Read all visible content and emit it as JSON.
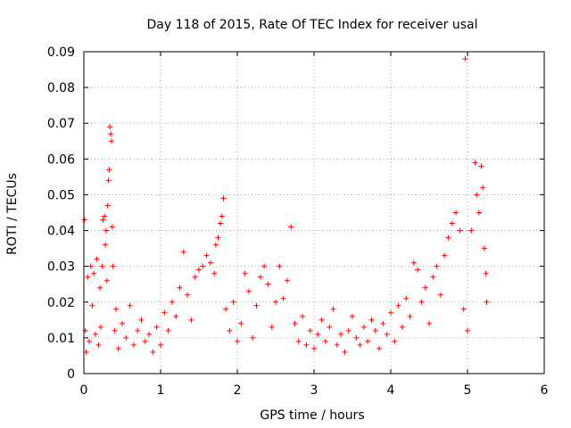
{
  "chart_data": {
    "type": "scatter",
    "title": "Day 118 of 2015, Rate Of TEC Index for receiver usal",
    "xlabel": "GPS time / hours",
    "ylabel": "ROTI / TECUs",
    "xlim": [
      0,
      6
    ],
    "ylim": [
      0,
      0.09
    ],
    "x_ticks": [
      "0",
      "1",
      "2",
      "3",
      "4",
      "5",
      "6"
    ],
    "y_ticks": [
      "0",
      "0.01",
      "0.02",
      "0.03",
      "0.04",
      "0.05",
      "0.06",
      "0.07",
      "0.08",
      "0.09"
    ],
    "grid": true,
    "marker": "+",
    "color": "#ff0000",
    "series": [
      {
        "points": [
          [
            0.01,
            0.043
          ],
          [
            0.02,
            0.012
          ],
          [
            0.03,
            0.006
          ],
          [
            0.05,
            0.027
          ],
          [
            0.07,
            0.009
          ],
          [
            0.09,
            0.03
          ],
          [
            0.11,
            0.019
          ],
          [
            0.13,
            0.028
          ],
          [
            0.15,
            0.011
          ],
          [
            0.17,
            0.032
          ],
          [
            0.19,
            0.008
          ],
          [
            0.21,
            0.024
          ],
          [
            0.22,
            0.013
          ],
          [
            0.24,
            0.03
          ],
          [
            0.25,
            0.043
          ],
          [
            0.27,
            0.044
          ],
          [
            0.28,
            0.036
          ],
          [
            0.29,
            0.04
          ],
          [
            0.3,
            0.026
          ],
          [
            0.31,
            0.047
          ],
          [
            0.32,
            0.054
          ],
          [
            0.33,
            0.057
          ],
          [
            0.34,
            0.069
          ],
          [
            0.35,
            0.067
          ],
          [
            0.36,
            0.065
          ],
          [
            0.37,
            0.041
          ],
          [
            0.38,
            0.03
          ],
          [
            0.4,
            0.012
          ],
          [
            0.42,
            0.018
          ],
          [
            0.45,
            0.007
          ],
          [
            0.5,
            0.014
          ],
          [
            0.55,
            0.01
          ],
          [
            0.6,
            0.019
          ],
          [
            0.65,
            0.008
          ],
          [
            0.7,
            0.012
          ],
          [
            0.75,
            0.015
          ],
          [
            0.8,
            0.009
          ],
          [
            0.85,
            0.011
          ],
          [
            0.9,
            0.006
          ],
          [
            0.95,
            0.013
          ],
          [
            1.0,
            0.008
          ],
          [
            1.05,
            0.017
          ],
          [
            1.1,
            0.012
          ],
          [
            1.15,
            0.02
          ],
          [
            1.2,
            0.016
          ],
          [
            1.25,
            0.024
          ],
          [
            1.3,
            0.034
          ],
          [
            1.35,
            0.022
          ],
          [
            1.4,
            0.015
          ],
          [
            1.45,
            0.027
          ],
          [
            1.5,
            0.029
          ],
          [
            1.55,
            0.03
          ],
          [
            1.6,
            0.033
          ],
          [
            1.65,
            0.031
          ],
          [
            1.7,
            0.028
          ],
          [
            1.72,
            0.036
          ],
          [
            1.75,
            0.038
          ],
          [
            1.78,
            0.042
          ],
          [
            1.8,
            0.044
          ],
          [
            1.82,
            0.049
          ],
          [
            1.85,
            0.018
          ],
          [
            1.9,
            0.012
          ],
          [
            1.95,
            0.02
          ],
          [
            2.0,
            0.009
          ],
          [
            2.05,
            0.014
          ],
          [
            2.1,
            0.028
          ],
          [
            2.15,
            0.023
          ],
          [
            2.2,
            0.01
          ],
          [
            2.25,
            0.019
          ],
          [
            2.3,
            0.027
          ],
          [
            2.35,
            0.03
          ],
          [
            2.4,
            0.025
          ],
          [
            2.45,
            0.013
          ],
          [
            2.5,
            0.02
          ],
          [
            2.55,
            0.03
          ],
          [
            2.6,
            0.021
          ],
          [
            2.65,
            0.026
          ],
          [
            2.7,
            0.041
          ],
          [
            2.75,
            0.014
          ],
          [
            2.8,
            0.009
          ],
          [
            2.85,
            0.016
          ],
          [
            2.9,
            0.008
          ],
          [
            2.95,
            0.012
          ],
          [
            3.0,
            0.007
          ],
          [
            3.05,
            0.011
          ],
          [
            3.1,
            0.015
          ],
          [
            3.15,
            0.009
          ],
          [
            3.2,
            0.013
          ],
          [
            3.25,
            0.018
          ],
          [
            3.3,
            0.008
          ],
          [
            3.35,
            0.011
          ],
          [
            3.4,
            0.006
          ],
          [
            3.45,
            0.012
          ],
          [
            3.5,
            0.016
          ],
          [
            3.55,
            0.01
          ],
          [
            3.6,
            0.008
          ],
          [
            3.65,
            0.013
          ],
          [
            3.7,
            0.009
          ],
          [
            3.75,
            0.015
          ],
          [
            3.8,
            0.012
          ],
          [
            3.85,
            0.007
          ],
          [
            3.9,
            0.014
          ],
          [
            3.95,
            0.011
          ],
          [
            4.0,
            0.017
          ],
          [
            4.05,
            0.009
          ],
          [
            4.1,
            0.019
          ],
          [
            4.15,
            0.013
          ],
          [
            4.2,
            0.021
          ],
          [
            4.25,
            0.016
          ],
          [
            4.3,
            0.031
          ],
          [
            4.35,
            0.029
          ],
          [
            4.4,
            0.02
          ],
          [
            4.45,
            0.024
          ],
          [
            4.5,
            0.014
          ],
          [
            4.55,
            0.027
          ],
          [
            4.6,
            0.03
          ],
          [
            4.65,
            0.022
          ],
          [
            4.7,
            0.033
          ],
          [
            4.75,
            0.038
          ],
          [
            4.8,
            0.042
          ],
          [
            4.85,
            0.045
          ],
          [
            4.9,
            0.04
          ],
          [
            4.95,
            0.018
          ],
          [
            4.97,
            0.088
          ],
          [
            5.0,
            0.012
          ],
          [
            5.05,
            0.04
          ],
          [
            5.1,
            0.059
          ],
          [
            5.12,
            0.05
          ],
          [
            5.15,
            0.045
          ],
          [
            5.18,
            0.058
          ],
          [
            5.2,
            0.052
          ],
          [
            5.22,
            0.035
          ],
          [
            5.24,
            0.028
          ],
          [
            5.25,
            0.02
          ]
        ]
      }
    ]
  }
}
